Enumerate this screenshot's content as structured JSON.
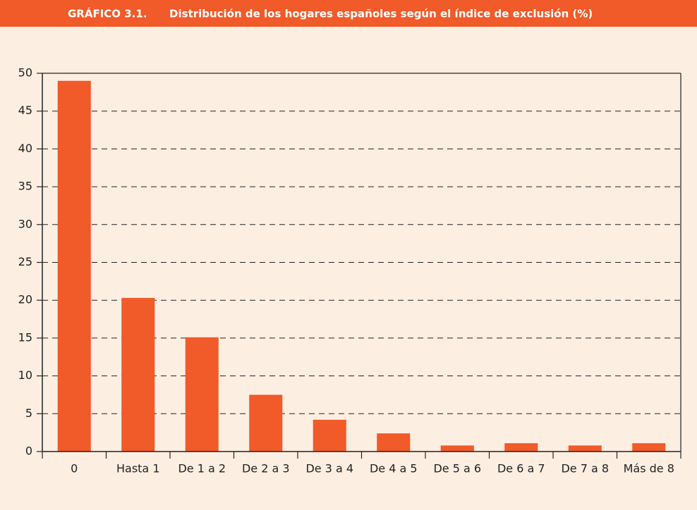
{
  "chart_data": {
    "type": "bar",
    "figure_label": "GRÁFICO 3.1.",
    "title": "Distribución de los hogares españoles según el índice de exclusión (%)",
    "categories": [
      "0",
      "Hasta 1",
      "De 1 a 2",
      "De 2 a 3",
      "De 3 a 4",
      "De 4 a 5",
      "De 5 a 6",
      "De 6 a 7",
      "De 7 a 8",
      "Más de 8"
    ],
    "values": [
      49,
      20.3,
      15.1,
      7.5,
      4.2,
      2.4,
      0.8,
      1.1,
      0.8,
      1.1
    ],
    "color": "#f15a29",
    "ylim": [
      0,
      50
    ],
    "yticks": [
      0,
      5,
      10,
      15,
      20,
      25,
      30,
      35,
      40,
      45,
      50
    ],
    "grid": true
  }
}
